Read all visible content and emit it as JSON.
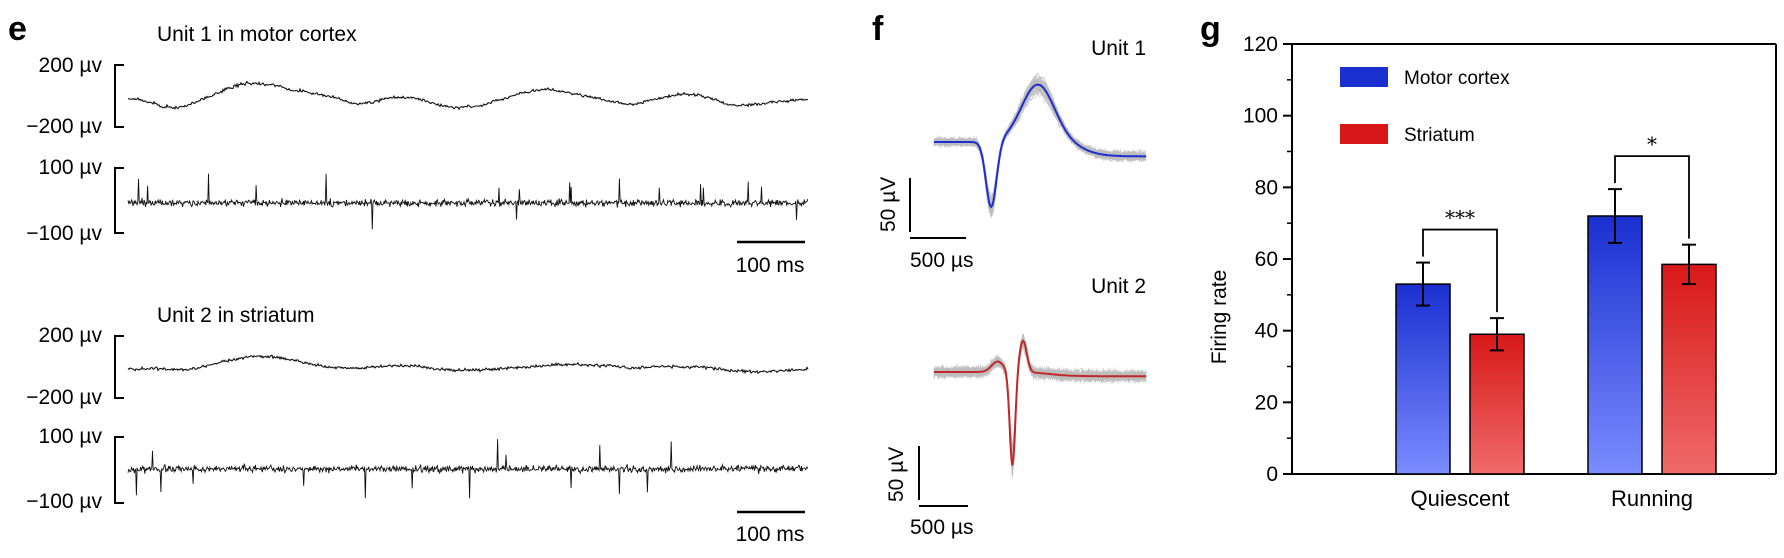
{
  "panels": {
    "e": {
      "letter": "e",
      "units": [
        {
          "title": "Unit 1 in motor cortex",
          "lfp": {
            "top_label": "200 µv",
            "bottom_label": "−200 µv"
          },
          "spikes": {
            "top_label": "100 µv",
            "bottom_label": "−100 µv"
          },
          "time_scale": "100 ms"
        },
        {
          "title": "Unit 2 in striatum",
          "lfp": {
            "top_label": "200 µv",
            "bottom_label": "−200 µv"
          },
          "spikes": {
            "top_label": "100 µv",
            "bottom_label": "−100 µv"
          },
          "time_scale": "100 ms"
        }
      ]
    },
    "f": {
      "letter": "f",
      "waveforms": [
        {
          "name": "Unit 1",
          "mean_color": "#1f2fcf",
          "amp_scale": "50 µV",
          "time_scale": "500 µs"
        },
        {
          "name": "Unit 2",
          "mean_color": "#c0282a",
          "amp_scale": "50 µV",
          "time_scale": "500 µs"
        }
      ]
    },
    "g": {
      "letter": "g"
    }
  },
  "chart_data": {
    "type": "bar",
    "ylabel": "Firing rate",
    "xlabel": "",
    "ylim": [
      0,
      120
    ],
    "yticks": [
      0,
      20,
      40,
      60,
      80,
      100,
      120
    ],
    "categories": [
      "Quiescent",
      "Running"
    ],
    "series": [
      {
        "name": "Motor cortex",
        "color": "#1a2fd0",
        "values": [
          53,
          72
        ],
        "errors": [
          6,
          7.5
        ]
      },
      {
        "name": "Striatum",
        "color": "#d81818",
        "values": [
          39,
          58.5
        ],
        "errors": [
          4.5,
          5.5
        ]
      }
    ],
    "significance": [
      "***",
      "*"
    ],
    "legend_position": "top-left"
  }
}
